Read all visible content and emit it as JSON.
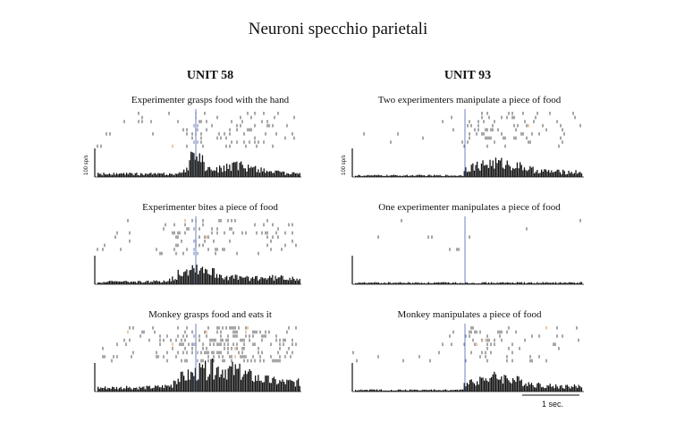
{
  "title": "Neuroni specchio parietali",
  "columns": [
    {
      "unit": "UNIT 58",
      "conditions": [
        {
          "label": "Experimenter grasps food with the hand",
          "y_label": "100 sp/s",
          "hist_profile": "peak",
          "density": 0.55
        },
        {
          "label": "Experimenter bites a piece of food",
          "y_label": "",
          "hist_profile": "broad",
          "density": 0.65
        },
        {
          "label": "Monkey grasps food and eats it",
          "y_label": "",
          "hist_profile": "high",
          "density": 0.8
        }
      ]
    },
    {
      "unit": "UNIT 93",
      "conditions": [
        {
          "label": "Two experimenters manipulate a piece of food",
          "y_label": "100 sp/s",
          "hist_profile": "late",
          "density": 0.5
        },
        {
          "label": "One experimenter manipulates a piece of food",
          "y_label": "",
          "hist_profile": "low",
          "density": 0.25
        },
        {
          "label": "Monkey manipulates a piece of food",
          "y_label": "",
          "hist_profile": "late",
          "density": 0.55
        }
      ]
    }
  ],
  "scale_bar": {
    "label": "1 sec."
  }
}
